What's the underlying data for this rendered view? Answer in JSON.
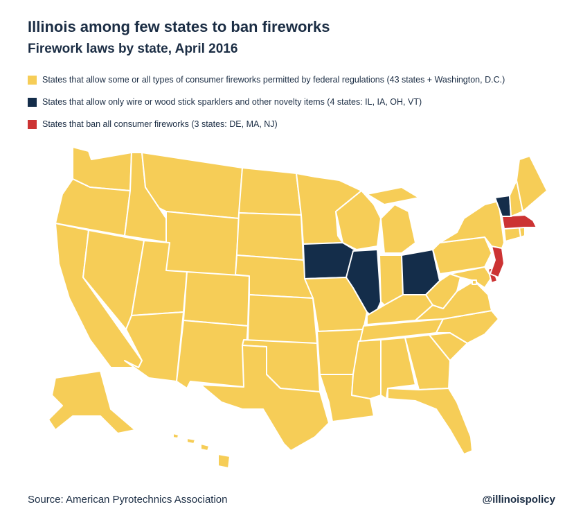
{
  "title": "Illinois among few states to ban fireworks",
  "subtitle": "Firework laws by state, April 2016",
  "colors": {
    "allow": "#f6cd57",
    "novelty": "#142d4a",
    "ban": "#cc3333"
  },
  "legend": [
    {
      "key": "allow",
      "label": "States that allow some or all types of consumer fireworks permitted by federal regulations (43 states + Washington, D.C.)"
    },
    {
      "key": "novelty",
      "label": "States that allow only wire or wood stick sparklers and other novelty items (4 states: IL, IA, OH, VT)"
    },
    {
      "key": "ban",
      "label": "States that ban all consumer fireworks (3 states: DE, MA, NJ)"
    }
  ],
  "state_categories": {
    "WA": "allow",
    "OR": "allow",
    "CA": "allow",
    "NV": "allow",
    "ID": "allow",
    "MT": "allow",
    "WY": "allow",
    "UT": "allow",
    "AZ": "allow",
    "CO": "allow",
    "NM": "allow",
    "ND": "allow",
    "SD": "allow",
    "NE": "allow",
    "KS": "allow",
    "OK": "allow",
    "TX": "allow",
    "MN": "allow",
    "IA": "novelty",
    "MO": "allow",
    "AR": "allow",
    "LA": "allow",
    "WI": "allow",
    "IL": "novelty",
    "MI": "allow",
    "IN": "allow",
    "OH": "novelty",
    "KY": "allow",
    "TN": "allow",
    "MS": "allow",
    "AL": "allow",
    "GA": "allow",
    "FL": "allow",
    "SC": "allow",
    "NC": "allow",
    "VA": "allow",
    "WV": "allow",
    "PA": "allow",
    "NY": "allow",
    "VT": "novelty",
    "NH": "allow",
    "ME": "allow",
    "MA": "ban",
    "RI": "allow",
    "CT": "allow",
    "NJ": "ban",
    "DE": "ban",
    "MD": "allow",
    "DC": "allow",
    "AK": "allow",
    "HI": "allow"
  },
  "source": "Source: American Pyrotechnics Association",
  "handle": "@illinoispolicy"
}
